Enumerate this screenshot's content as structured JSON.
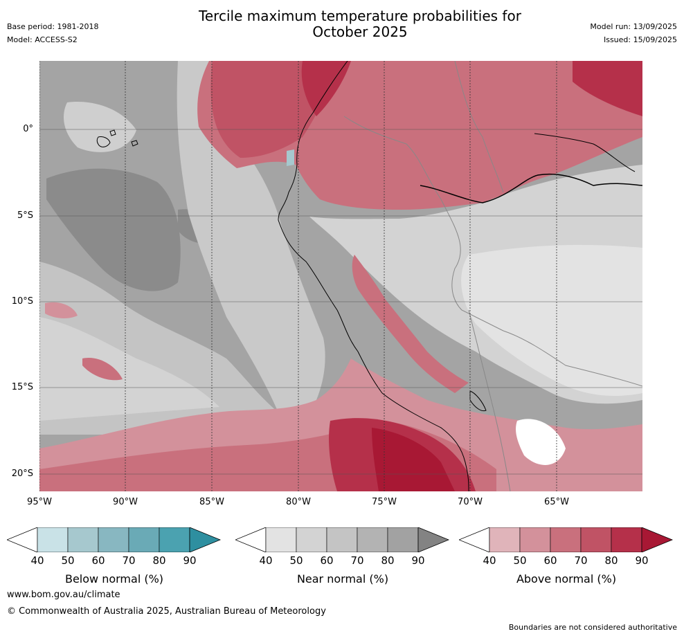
{
  "title_line1": "Tercile maximum temperature probabilities for",
  "title_line2": "October 2025",
  "base_period": "Base period: 1981-2018",
  "model": "Model: ACCESS-S2",
  "model_run": "Model run: 13/09/2025",
  "issued": "Issued: 15/09/2025",
  "lat_labels": [
    "0°",
    "5°S",
    "10°S",
    "15°S",
    "20°S"
  ],
  "lon_labels": [
    "95°W",
    "90°W",
    "85°W",
    "80°W",
    "75°W",
    "70°W",
    "65°W"
  ],
  "colorbars": [
    {
      "label": "Below normal (%)",
      "ticks": [
        "40",
        "50",
        "60",
        "70",
        "80",
        "90"
      ],
      "colors": [
        "#c9e2e7",
        "#a6c8ce",
        "#88b7c1",
        "#6aaab6",
        "#4ba2b0",
        "#2e8fa0"
      ]
    },
    {
      "label": "Near normal (%)",
      "ticks": [
        "40",
        "50",
        "60",
        "70",
        "80",
        "90"
      ],
      "colors": [
        "#e3e3e3",
        "#d3d3d3",
        "#c4c4c4",
        "#b3b3b3",
        "#a2a2a2",
        "#838383"
      ]
    },
    {
      "label": "Above normal (%)",
      "ticks": [
        "40",
        "50",
        "60",
        "70",
        "80",
        "90"
      ],
      "colors": [
        "#e0b4ba",
        "#d3919b",
        "#c9707d",
        "#c05365",
        "#b5304a",
        "#a81834"
      ]
    }
  ],
  "footer": {
    "url": "www.bom.gov.au/climate",
    "copyright": "© Commonwealth of Australia 2025, Australian Bureau of Meteorology",
    "disclaimer": "Boundaries are not considered authoritative"
  }
}
